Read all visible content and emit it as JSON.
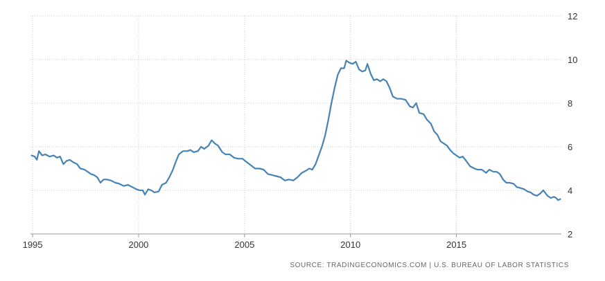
{
  "source_text": "SOURCE: TRADINGECONOMICS.COM  |  U.S. BUREAU OF LABOR STATISTICS",
  "chart_data": {
    "type": "line",
    "title": "",
    "xlabel": "",
    "ylabel": "",
    "xlim": [
      1994.9,
      2019.95
    ],
    "ylim": [
      2,
      12
    ],
    "x_ticks": [
      1995,
      2000,
      2005,
      2010,
      2015
    ],
    "x_tick_labels": [
      "1995",
      "2000",
      "2005",
      "2010",
      "2015"
    ],
    "y_ticks": [
      2,
      4,
      6,
      8,
      10,
      12
    ],
    "y_tick_labels": [
      "2",
      "4",
      "6",
      "8",
      "10",
      "12"
    ],
    "y_axis_position": "right",
    "grid": "dotted",
    "legend": "none",
    "line_color": "#4682b4",
    "series": [
      {
        "points": [
          [
            1994.95,
            5.6
          ],
          [
            1995.1,
            5.55
          ],
          [
            1995.2,
            5.4
          ],
          [
            1995.3,
            5.8
          ],
          [
            1995.45,
            5.6
          ],
          [
            1995.6,
            5.65
          ],
          [
            1995.8,
            5.55
          ],
          [
            1996.0,
            5.6
          ],
          [
            1996.15,
            5.5
          ],
          [
            1996.3,
            5.55
          ],
          [
            1996.45,
            5.2
          ],
          [
            1996.6,
            5.35
          ],
          [
            1996.75,
            5.4
          ],
          [
            1996.9,
            5.3
          ],
          [
            1997.1,
            5.2
          ],
          [
            1997.25,
            5.0
          ],
          [
            1997.45,
            4.95
          ],
          [
            1997.6,
            4.85
          ],
          [
            1997.75,
            4.75
          ],
          [
            1997.9,
            4.7
          ],
          [
            1998.05,
            4.6
          ],
          [
            1998.2,
            4.35
          ],
          [
            1998.35,
            4.5
          ],
          [
            1998.5,
            4.5
          ],
          [
            1998.7,
            4.45
          ],
          [
            1998.9,
            4.35
          ],
          [
            1999.1,
            4.3
          ],
          [
            1999.3,
            4.2
          ],
          [
            1999.5,
            4.25
          ],
          [
            1999.7,
            4.15
          ],
          [
            1999.9,
            4.05
          ],
          [
            2000.05,
            4.0
          ],
          [
            2000.2,
            4.0
          ],
          [
            2000.3,
            3.8
          ],
          [
            2000.45,
            4.05
          ],
          [
            2000.6,
            4.0
          ],
          [
            2000.75,
            3.9
          ],
          [
            2000.95,
            3.95
          ],
          [
            2001.1,
            4.25
          ],
          [
            2001.3,
            4.35
          ],
          [
            2001.45,
            4.6
          ],
          [
            2001.6,
            4.9
          ],
          [
            2001.75,
            5.3
          ],
          [
            2001.9,
            5.65
          ],
          [
            2002.1,
            5.8
          ],
          [
            2002.3,
            5.8
          ],
          [
            2002.45,
            5.85
          ],
          [
            2002.6,
            5.75
          ],
          [
            2002.8,
            5.8
          ],
          [
            2002.95,
            6.0
          ],
          [
            2003.1,
            5.9
          ],
          [
            2003.3,
            6.05
          ],
          [
            2003.45,
            6.3
          ],
          [
            2003.6,
            6.15
          ],
          [
            2003.75,
            6.05
          ],
          [
            2003.95,
            5.75
          ],
          [
            2004.1,
            5.65
          ],
          [
            2004.3,
            5.65
          ],
          [
            2004.5,
            5.5
          ],
          [
            2004.7,
            5.45
          ],
          [
            2004.9,
            5.45
          ],
          [
            2005.1,
            5.3
          ],
          [
            2005.3,
            5.15
          ],
          [
            2005.5,
            5.0
          ],
          [
            2005.7,
            5.0
          ],
          [
            2005.9,
            4.95
          ],
          [
            2006.1,
            4.75
          ],
          [
            2006.3,
            4.7
          ],
          [
            2006.5,
            4.65
          ],
          [
            2006.7,
            4.6
          ],
          [
            2006.9,
            4.45
          ],
          [
            2007.1,
            4.5
          ],
          [
            2007.3,
            4.45
          ],
          [
            2007.5,
            4.6
          ],
          [
            2007.7,
            4.8
          ],
          [
            2007.9,
            4.9
          ],
          [
            2008.05,
            5.0
          ],
          [
            2008.2,
            4.95
          ],
          [
            2008.35,
            5.2
          ],
          [
            2008.5,
            5.6
          ],
          [
            2008.65,
            6.0
          ],
          [
            2008.8,
            6.5
          ],
          [
            2008.95,
            7.2
          ],
          [
            2009.1,
            8.0
          ],
          [
            2009.25,
            8.7
          ],
          [
            2009.4,
            9.3
          ],
          [
            2009.55,
            9.6
          ],
          [
            2009.7,
            9.6
          ],
          [
            2009.8,
            9.95
          ],
          [
            2009.95,
            9.85
          ],
          [
            2010.1,
            9.8
          ],
          [
            2010.25,
            9.9
          ],
          [
            2010.4,
            9.55
          ],
          [
            2010.55,
            9.45
          ],
          [
            2010.7,
            9.5
          ],
          [
            2010.8,
            9.8
          ],
          [
            2010.95,
            9.35
          ],
          [
            2011.1,
            9.05
          ],
          [
            2011.25,
            9.1
          ],
          [
            2011.4,
            9.0
          ],
          [
            2011.55,
            9.1
          ],
          [
            2011.7,
            9.0
          ],
          [
            2011.85,
            8.7
          ],
          [
            2012.0,
            8.3
          ],
          [
            2012.2,
            8.2
          ],
          [
            2012.4,
            8.2
          ],
          [
            2012.6,
            8.15
          ],
          [
            2012.8,
            7.85
          ],
          [
            2012.95,
            7.8
          ],
          [
            2013.1,
            8.0
          ],
          [
            2013.25,
            7.55
          ],
          [
            2013.45,
            7.5
          ],
          [
            2013.6,
            7.25
          ],
          [
            2013.8,
            7.05
          ],
          [
            2013.95,
            6.7
          ],
          [
            2014.1,
            6.55
          ],
          [
            2014.25,
            6.25
          ],
          [
            2014.4,
            6.15
          ],
          [
            2014.55,
            6.05
          ],
          [
            2014.7,
            5.85
          ],
          [
            2014.85,
            5.7
          ],
          [
            2015.0,
            5.6
          ],
          [
            2015.15,
            5.5
          ],
          [
            2015.3,
            5.55
          ],
          [
            2015.5,
            5.3
          ],
          [
            2015.65,
            5.1
          ],
          [
            2015.85,
            5.0
          ],
          [
            2016.0,
            4.95
          ],
          [
            2016.2,
            4.95
          ],
          [
            2016.4,
            4.8
          ],
          [
            2016.55,
            4.95
          ],
          [
            2016.75,
            4.85
          ],
          [
            2016.9,
            4.85
          ],
          [
            2017.05,
            4.75
          ],
          [
            2017.2,
            4.5
          ],
          [
            2017.35,
            4.35
          ],
          [
            2017.5,
            4.35
          ],
          [
            2017.7,
            4.3
          ],
          [
            2017.85,
            4.15
          ],
          [
            2018.05,
            4.1
          ],
          [
            2018.2,
            4.05
          ],
          [
            2018.35,
            3.95
          ],
          [
            2018.5,
            3.9
          ],
          [
            2018.65,
            3.8
          ],
          [
            2018.8,
            3.75
          ],
          [
            2018.95,
            3.85
          ],
          [
            2019.1,
            4.0
          ],
          [
            2019.3,
            3.75
          ],
          [
            2019.45,
            3.65
          ],
          [
            2019.6,
            3.7
          ],
          [
            2019.7,
            3.65
          ],
          [
            2019.8,
            3.55
          ],
          [
            2019.9,
            3.6
          ]
        ]
      }
    ]
  }
}
